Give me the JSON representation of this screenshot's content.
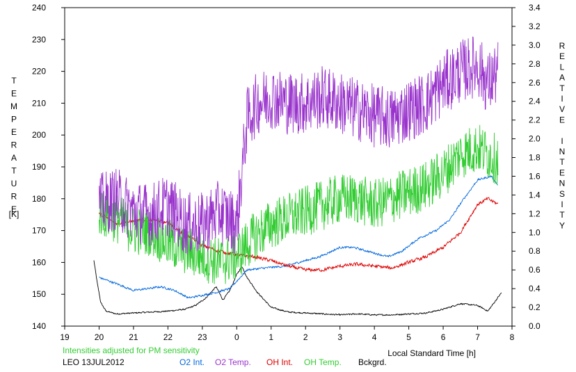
{
  "chart_data": {
    "type": "line",
    "left_axis_label": "TEMPERATURE",
    "left_axis_unit": "[K]",
    "right_axis_label": "RELATIVE INTENSITY",
    "x_label": "Local Standard Time [h]",
    "note": "Intensities adjusted for PM sensitivity",
    "station_date": "LEO 13JUL2012",
    "colors": {
      "o2_int": "#0066dd",
      "o2_temp": "#9933cc",
      "oh_int": "#dd0000",
      "oh_temp": "#33cc33",
      "bckgrd": "#000000",
      "note": "#33cc33"
    },
    "x_range_hours": [
      19,
      32
    ],
    "x_ticks": [
      "19",
      "20",
      "21",
      "22",
      "23",
      "0",
      "1",
      "2",
      "3",
      "4",
      "5",
      "6",
      "7",
      "8"
    ],
    "y_left_range": [
      140,
      240
    ],
    "y_left_ticks": [
      "140",
      "150",
      "160",
      "170",
      "180",
      "190",
      "200",
      "210",
      "220",
      "230",
      "240"
    ],
    "y_right_range": [
      0.0,
      3.4
    ],
    "y_right_ticks": [
      "0.0",
      "0.2",
      "0.4",
      "0.6",
      "0.8",
      "1.0",
      "1.2",
      "1.4",
      "1.6",
      "1.8",
      "2.0",
      "2.2",
      "2.4",
      "2.6",
      "2.8",
      "3.0",
      "3.2",
      "3.4"
    ],
    "series": [
      {
        "name": "O2 Int.",
        "key": "o2_int",
        "axis": "right",
        "noise": 0.015,
        "x": [
          20.0,
          20.6,
          21.0,
          21.4,
          21.8,
          22.2,
          22.6,
          23.0,
          23.4,
          23.8,
          24.3,
          24.8,
          25.4,
          25.8,
          26.4,
          27.0,
          27.4,
          27.8,
          28.4,
          28.8,
          29.3,
          29.8,
          30.2,
          30.6,
          31.0,
          31.4,
          31.6
        ],
        "y": [
          0.52,
          0.44,
          0.38,
          0.4,
          0.42,
          0.38,
          0.3,
          0.33,
          0.36,
          0.4,
          0.6,
          0.62,
          0.64,
          0.68,
          0.74,
          0.84,
          0.84,
          0.8,
          0.74,
          0.8,
          0.94,
          1.02,
          1.14,
          1.36,
          1.56,
          1.6,
          1.5
        ]
      },
      {
        "name": "O2 Temp.",
        "key": "o2_temp",
        "axis": "left",
        "noise": 10,
        "x": [
          20.0,
          20.5,
          21.0,
          21.5,
          22.0,
          22.5,
          23.0,
          23.5,
          24.0,
          24.3,
          24.6,
          25.0,
          25.5,
          26.0,
          26.5,
          27.0,
          27.5,
          28.0,
          28.5,
          29.0,
          29.5,
          30.0,
          30.5,
          31.0,
          31.3,
          31.6
        ],
        "y": [
          178,
          180,
          176,
          175,
          178,
          172,
          172,
          176,
          172,
          205,
          210,
          212,
          210,
          210,
          212,
          210,
          208,
          206,
          205,
          208,
          210,
          216,
          220,
          222,
          216,
          220
        ]
      },
      {
        "name": "OH Int.",
        "key": "oh_int",
        "axis": "right",
        "noise": 0.025,
        "x": [
          20.0,
          20.5,
          21.0,
          21.5,
          22.0,
          22.5,
          23.0,
          23.5,
          24.0,
          24.5,
          25.0,
          25.5,
          26.0,
          26.5,
          27.0,
          27.5,
          28.0,
          28.5,
          29.0,
          29.5,
          30.0,
          30.5,
          31.0,
          31.3,
          31.6
        ],
        "y": [
          1.2,
          1.1,
          1.12,
          1.14,
          1.1,
          0.98,
          0.86,
          0.8,
          0.76,
          0.74,
          0.7,
          0.64,
          0.6,
          0.6,
          0.64,
          0.66,
          0.64,
          0.62,
          0.68,
          0.74,
          0.84,
          1.0,
          1.3,
          1.36,
          1.3
        ]
      },
      {
        "name": "OH Temp.",
        "key": "oh_temp",
        "axis": "left",
        "noise": 8,
        "x": [
          20.0,
          20.5,
          21.0,
          21.5,
          22.0,
          22.5,
          23.0,
          23.5,
          24.0,
          24.5,
          25.0,
          25.5,
          26.0,
          26.5,
          27.0,
          27.5,
          28.0,
          28.5,
          29.0,
          29.5,
          30.0,
          30.5,
          31.0,
          31.3,
          31.6
        ],
        "y": [
          176,
          174,
          170,
          170,
          166,
          164,
          162,
          160,
          162,
          168,
          172,
          174,
          176,
          178,
          180,
          180,
          178,
          180,
          182,
          184,
          188,
          194,
          196,
          194,
          192
        ]
      },
      {
        "name": "Bckgrd.",
        "key": "bckgrd",
        "axis": "right",
        "noise": 0.01,
        "x": [
          19.85,
          19.95,
          20.05,
          20.2,
          20.5,
          21.0,
          21.5,
          22.0,
          22.5,
          22.8,
          23.1,
          23.4,
          23.6,
          23.8,
          24.0,
          24.15,
          24.3,
          24.6,
          25.0,
          25.5,
          26.0,
          26.5,
          27.0,
          27.5,
          28.0,
          28.5,
          29.0,
          29.5,
          30.0,
          30.5,
          31.0,
          31.3,
          31.5,
          31.7
        ],
        "y": [
          0.7,
          0.45,
          0.25,
          0.16,
          0.13,
          0.14,
          0.15,
          0.16,
          0.18,
          0.22,
          0.3,
          0.42,
          0.28,
          0.38,
          0.55,
          0.64,
          0.52,
          0.36,
          0.2,
          0.15,
          0.14,
          0.13,
          0.12,
          0.13,
          0.12,
          0.12,
          0.13,
          0.14,
          0.18,
          0.24,
          0.22,
          0.16,
          0.26,
          0.36
        ]
      }
    ]
  }
}
